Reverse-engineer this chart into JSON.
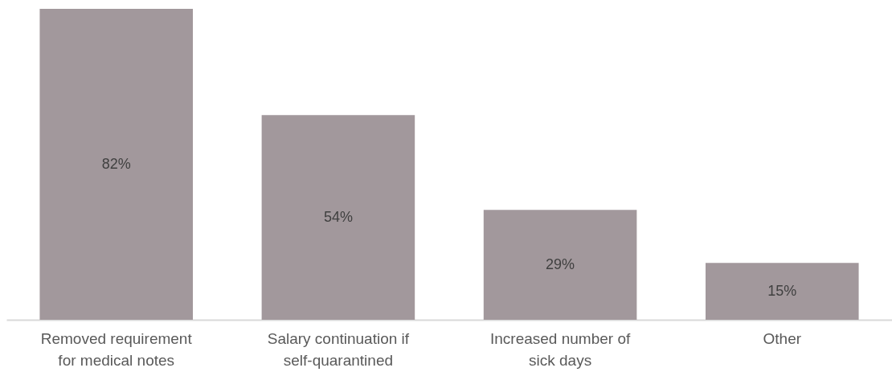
{
  "chart_data": {
    "type": "bar",
    "categories": [
      "Removed requirement for medical notes",
      "Salary continuation if self-quarantined",
      "Increased number of sick days",
      "Other"
    ],
    "values": [
      82,
      54,
      29,
      15
    ],
    "color": "#a2989c",
    "value_labels": [
      "82%",
      "54%",
      "29%",
      "15%"
    ]
  }
}
